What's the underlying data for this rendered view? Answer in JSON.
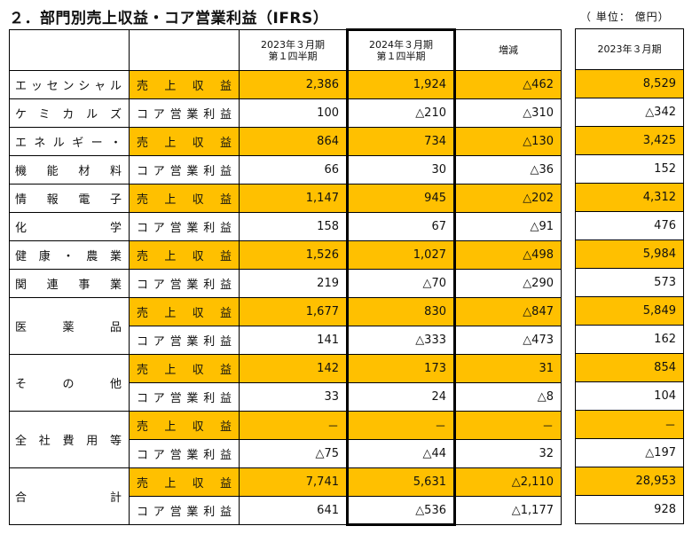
{
  "title": "２．部門別売上収益・コア営業利益（IFRS）",
  "unit": "（ 単位：  億円）",
  "headers": {
    "prev_q1": [
      "2023年３月期",
      "第１四半期"
    ],
    "curr_q1": [
      "2024年３月期",
      "第１四半期"
    ],
    "change": "増減",
    "prev_fy": "2023年３月期"
  },
  "row_types": {
    "revenue": "売上収益",
    "core": "コア営業利益"
  },
  "segments": [
    {
      "name_lines": [
        "エッセンシャル",
        "ケミカルズ"
      ],
      "revenue": {
        "prev": "2,386",
        "curr": "1,924",
        "change": "△462",
        "fy": "8,529"
      },
      "core": {
        "prev": "100",
        "curr": "△210",
        "change": "△310",
        "fy": "△342"
      }
    },
    {
      "name_lines": [
        "エネルギー・",
        "機能材料"
      ],
      "revenue": {
        "prev": "864",
        "curr": "734",
        "change": "△130",
        "fy": "3,425"
      },
      "core": {
        "prev": "66",
        "curr": "30",
        "change": "△36",
        "fy": "152"
      }
    },
    {
      "name_lines": [
        "情報電子",
        "化学"
      ],
      "revenue": {
        "prev": "1,147",
        "curr": "945",
        "change": "△202",
        "fy": "4,312"
      },
      "core": {
        "prev": "158",
        "curr": "67",
        "change": "△91",
        "fy": "476"
      }
    },
    {
      "name_lines": [
        "健康・農業",
        "関連事業"
      ],
      "revenue": {
        "prev": "1,526",
        "curr": "1,027",
        "change": "△498",
        "fy": "5,984"
      },
      "core": {
        "prev": "219",
        "curr": "△70",
        "change": "△290",
        "fy": "573"
      }
    },
    {
      "name_lines": [
        "医薬品"
      ],
      "revenue": {
        "prev": "1,677",
        "curr": "830",
        "change": "△847",
        "fy": "5,849"
      },
      "core": {
        "prev": "141",
        "curr": "△333",
        "change": "△473",
        "fy": "162"
      }
    },
    {
      "name_lines": [
        "その他"
      ],
      "revenue": {
        "prev": "142",
        "curr": "173",
        "change": "31",
        "fy": "854"
      },
      "core": {
        "prev": "33",
        "curr": "24",
        "change": "△8",
        "fy": "104"
      }
    },
    {
      "name_lines": [
        "全社費用等"
      ],
      "revenue": {
        "prev": "－",
        "curr": "－",
        "change": "－",
        "fy": "－"
      },
      "core": {
        "prev": "△75",
        "curr": "△44",
        "change": "32",
        "fy": "△197"
      }
    },
    {
      "name_lines": [
        "合計"
      ],
      "revenue": {
        "prev": "7,741",
        "curr": "5,631",
        "change": "△2,110",
        "fy": "28,953"
      },
      "core": {
        "prev": "641",
        "curr": "△536",
        "change": "△1,177",
        "fy": "928"
      }
    }
  ]
}
